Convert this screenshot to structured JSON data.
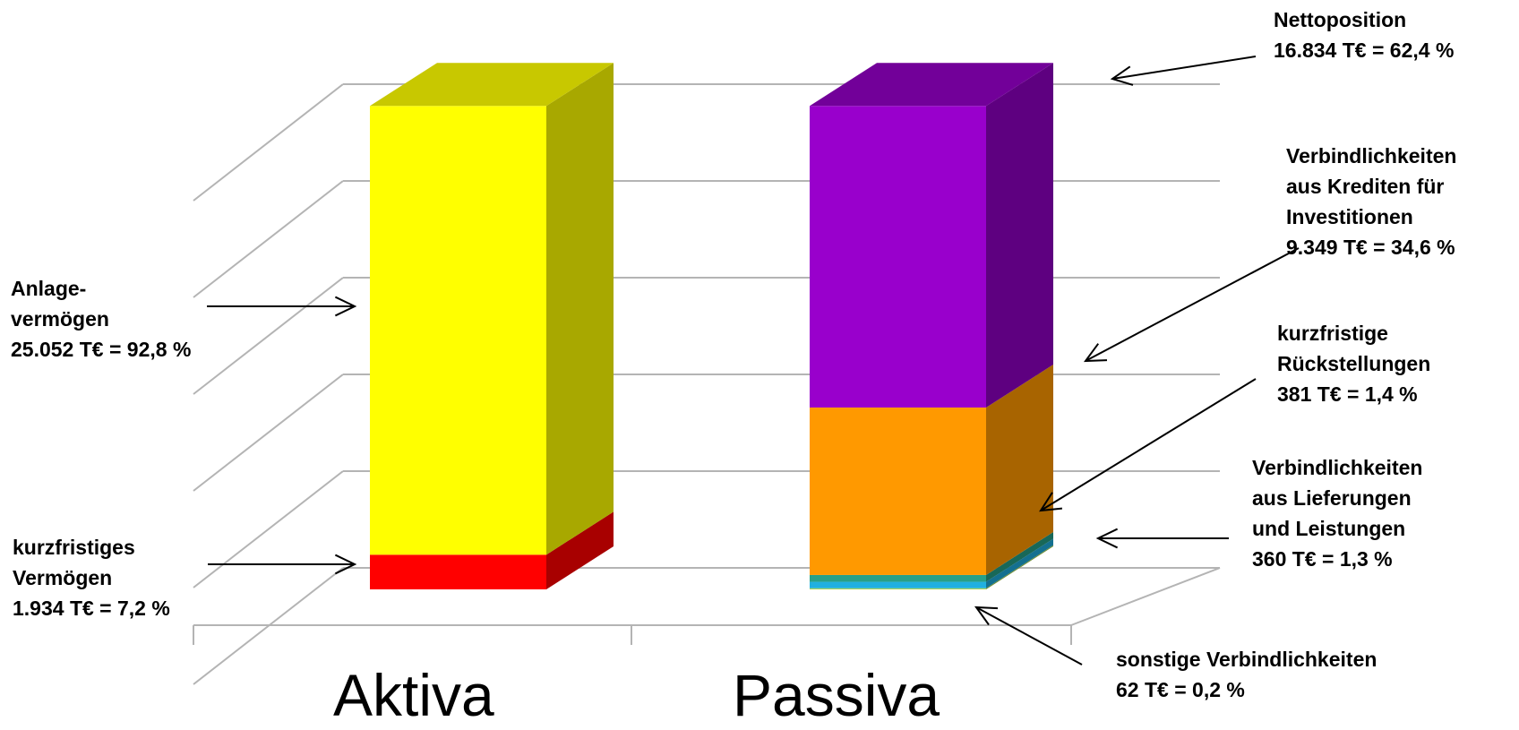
{
  "chart_data": {
    "type": "bar",
    "stacked": true,
    "view": "3d",
    "grid": true,
    "categories": [
      "Aktiva",
      "Passiva"
    ],
    "ylim": [
      0,
      27000
    ],
    "series": [
      {
        "name": "kurzfristiges Vermögen",
        "values": [
          1934,
          0
        ],
        "label_lines": [
          "kurzfristiges",
          "Vermögen",
          "1.934 T€ = 7,2 %"
        ],
        "color": "#ff0000",
        "side_color": "#a80000",
        "top_color": "#ff4040"
      },
      {
        "name": "Anlagevermögen",
        "values": [
          25052,
          0
        ],
        "label_lines": [
          "Anlage-",
          "vermögen",
          "25.052 T€ = 92,8 %"
        ],
        "color": "#ffff00",
        "side_color": "#a8a800",
        "top_color": "#c8c800"
      },
      {
        "name": "sonstige Verbindlichkeiten",
        "values": [
          0,
          62
        ],
        "label_lines": [
          "sonstige Verbindlichkeiten",
          "62 T€ = 0,2 %"
        ],
        "color": "#a8d050",
        "side_color": "#6e8c30",
        "top_color": "#c0e070"
      },
      {
        "name": "Verbindlichkeiten aus Lieferungen und Leistungen",
        "values": [
          0,
          360
        ],
        "label_lines": [
          "Verbindlichkeiten",
          "aus Lieferungen",
          "und Leistungen",
          "360 T€ = 1,3 %"
        ],
        "color": "#20b0e0",
        "side_color": "#147090",
        "top_color": "#50c8f0"
      },
      {
        "name": "kurzfristige Rückstellungen",
        "values": [
          0,
          381
        ],
        "label_lines": [
          "kurzfristige",
          "Rückstellungen",
          "381 T€ = 1,4 %"
        ],
        "color": "#28a088",
        "side_color": "#186858",
        "top_color": "#40c0a0"
      },
      {
        "name": "Verbindlichkeiten aus Krediten für Investitionen",
        "values": [
          0,
          9349
        ],
        "label_lines": [
          "Verbindlichkeiten",
          "aus Krediten für",
          "Investitionen",
          "9.349 T€ = 34,6 %"
        ],
        "color": "#ff9900",
        "side_color": "#a86400",
        "top_color": "#ffb040"
      },
      {
        "name": "Nettoposition",
        "values": [
          0,
          16834
        ],
        "label_lines": [
          "Nettoposition",
          "16.834 T€ = 62,4 %"
        ],
        "color": "#9900cc",
        "side_color": "#5e0080",
        "top_color": "#720099"
      }
    ]
  }
}
